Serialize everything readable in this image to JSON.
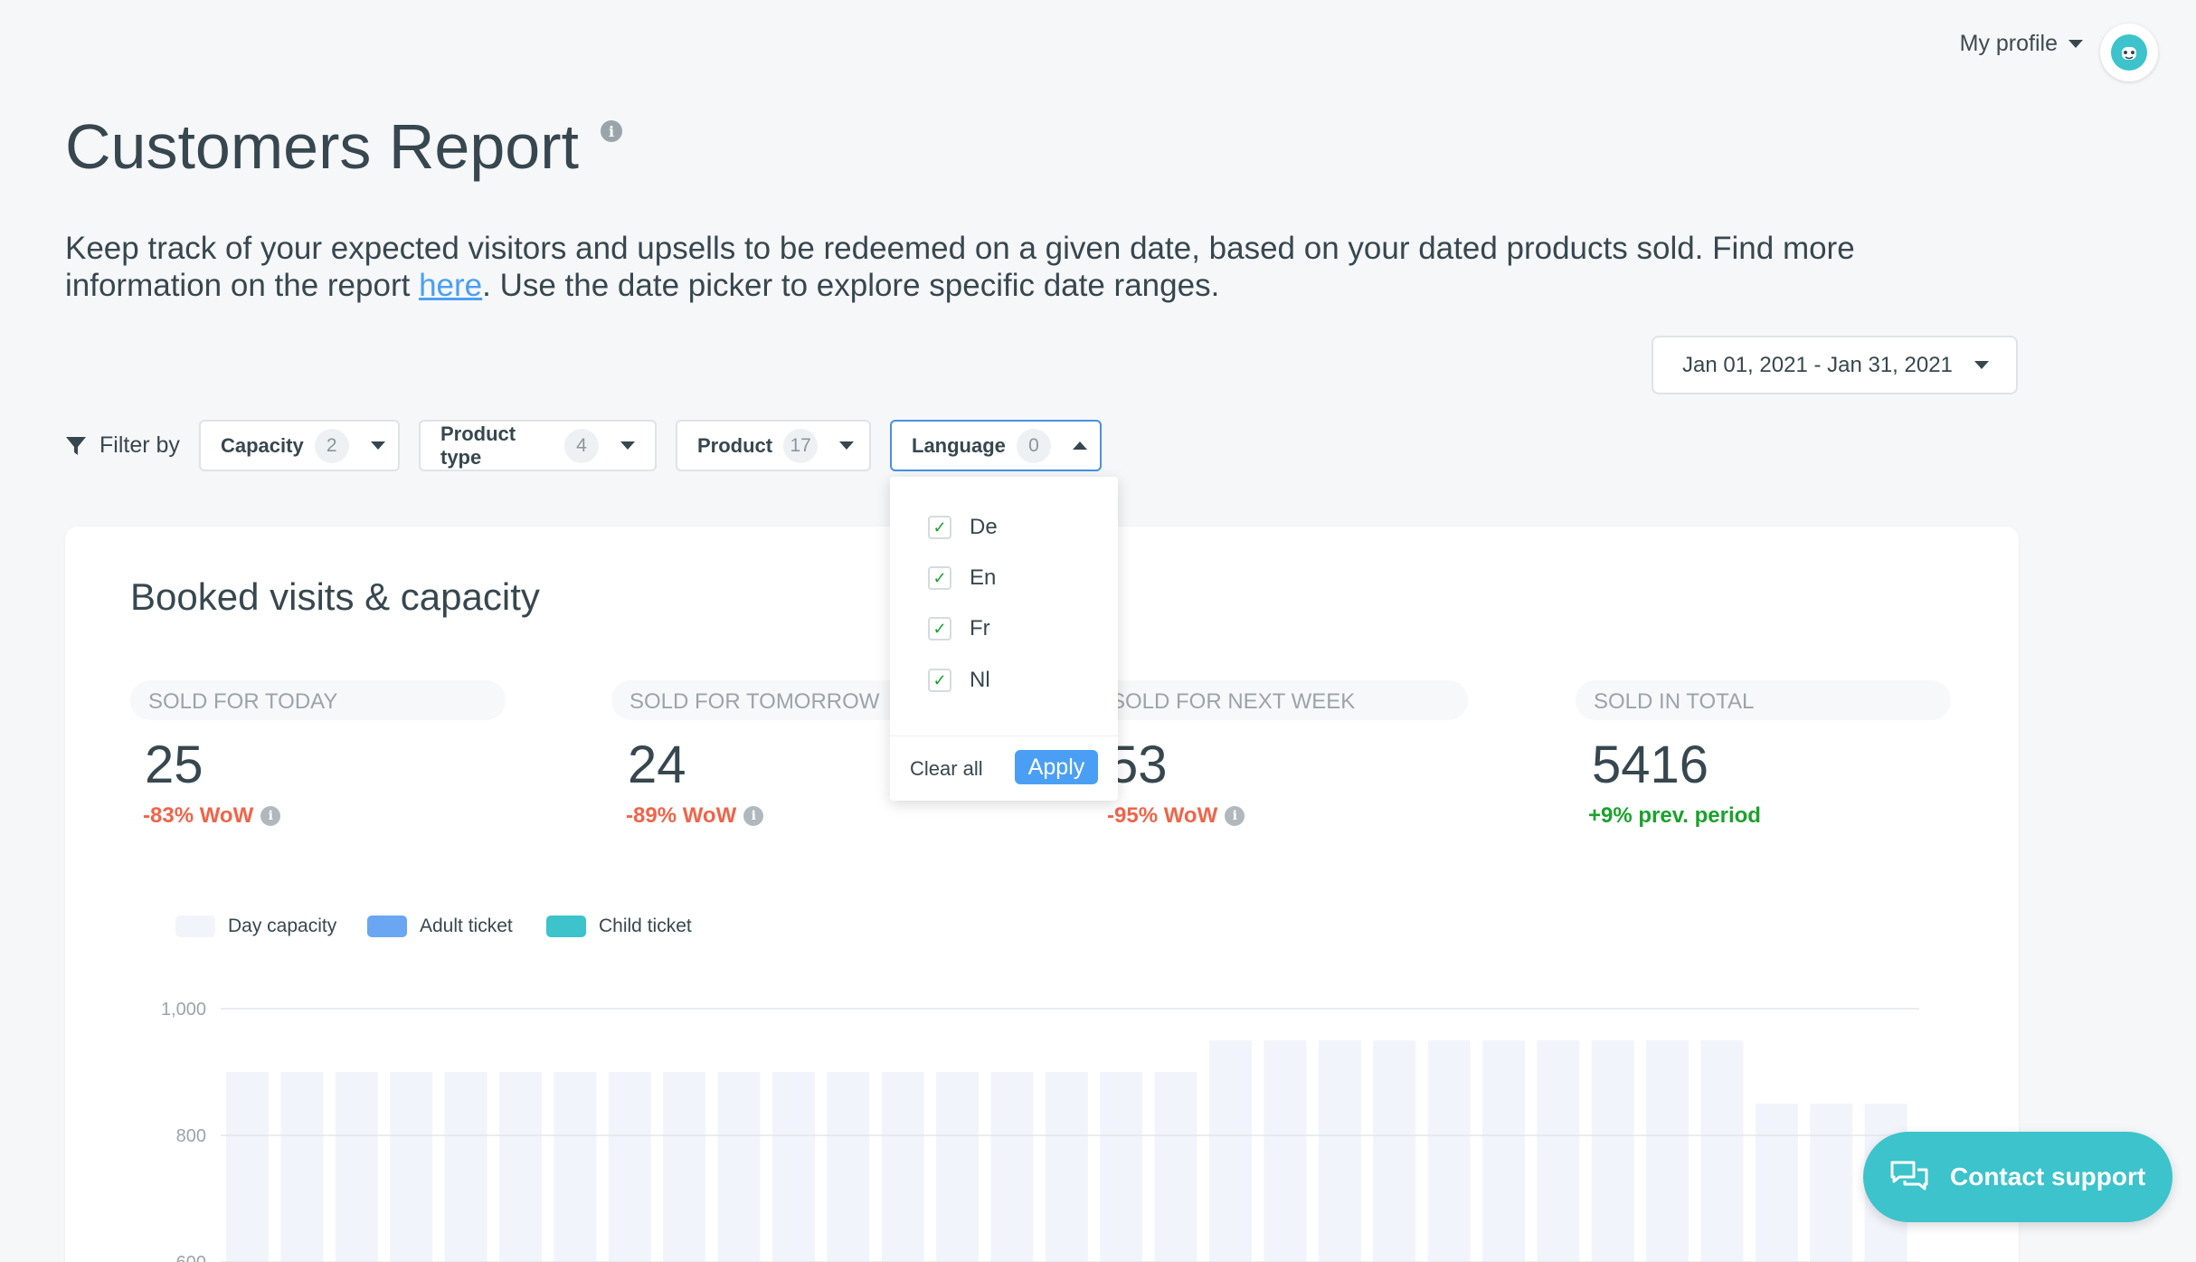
{
  "header": {
    "profile_label": "My profile"
  },
  "page": {
    "title": "Customers Report",
    "description_part1": "Keep track of your expected visitors and upsells to be redeemed on a given date, based on your dated products sold. Find more information on the report ",
    "link_text": "here",
    "description_part2": ". Use the date picker to explore specific date ranges."
  },
  "date_range": "Jan 01, 2021 - Jan 31, 2021",
  "filters": {
    "label": "Filter by",
    "items": [
      {
        "label": "Capacity",
        "count": "2"
      },
      {
        "label": "Product type",
        "count": "4"
      },
      {
        "label": "Product",
        "count": "17"
      },
      {
        "label": "Language",
        "count": "0"
      }
    ]
  },
  "language_dropdown": {
    "options": [
      {
        "label": "De",
        "checked": true
      },
      {
        "label": "En",
        "checked": true
      },
      {
        "label": "Fr",
        "checked": true
      },
      {
        "label": "Nl",
        "checked": true
      }
    ],
    "clear_label": "Clear all",
    "apply_label": "Apply"
  },
  "card": {
    "title": "Booked visits & capacity",
    "stats": [
      {
        "label": "SOLD FOR TODAY",
        "value": "25",
        "change": "-83% WoW",
        "trend": "negative"
      },
      {
        "label": "SOLD FOR TOMORROW",
        "value": "24",
        "change": "-89% WoW",
        "trend": "negative"
      },
      {
        "label": "SOLD FOR NEXT WEEK",
        "value": "53",
        "change": "-95% WoW",
        "trend": "negative"
      },
      {
        "label": "SOLD IN TOTAL",
        "value": "5416",
        "change": "+9% prev. period",
        "trend": "positive"
      }
    ]
  },
  "chart_data": {
    "type": "bar",
    "series": [
      {
        "name": "Day capacity",
        "color": "#f1f5fb",
        "values": [
          900,
          900,
          900,
          900,
          900,
          900,
          900,
          900,
          900,
          900,
          900,
          900,
          900,
          900,
          900,
          900,
          900,
          900,
          950,
          950,
          950,
          950,
          950,
          950,
          950,
          950,
          950,
          950,
          850,
          850,
          850
        ]
      },
      {
        "name": "Adult ticket",
        "color": "#6aa6f2",
        "values": []
      },
      {
        "name": "Child ticket",
        "color": "#3cc3cb",
        "values": []
      }
    ],
    "y_ticks": [
      "1,000",
      "800",
      "600"
    ],
    "ylim": [
      600,
      1000
    ]
  },
  "support": {
    "label": "Contact support"
  },
  "colors": {
    "accent": "#4a9ff5",
    "teal": "#3cc3cb",
    "negative": "#f06449",
    "positive": "#1aa22c"
  }
}
